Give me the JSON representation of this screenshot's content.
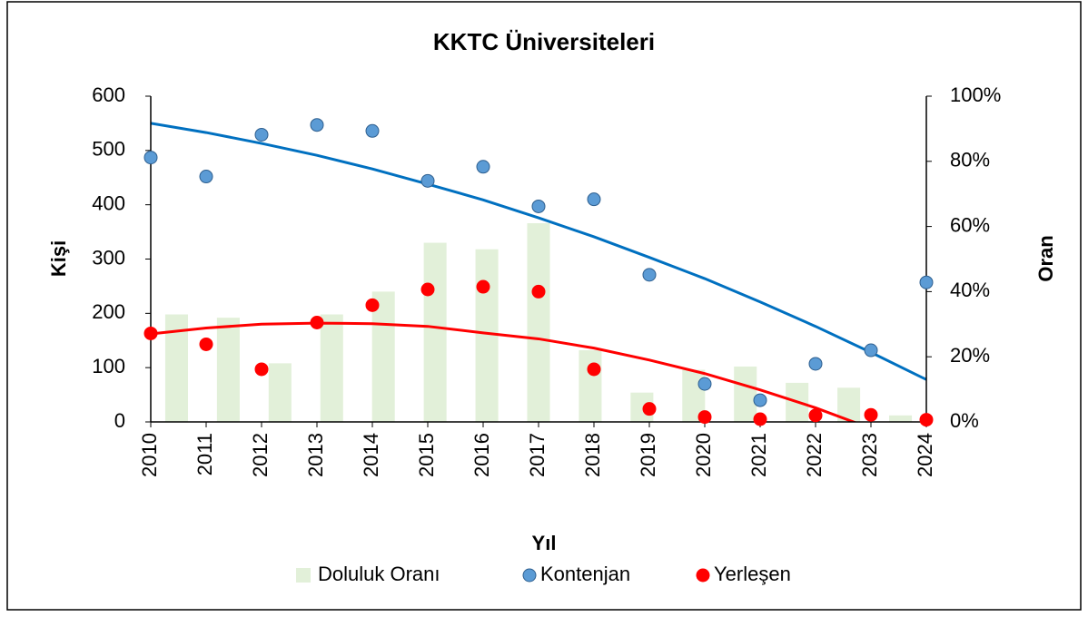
{
  "chart_data": {
    "type": "scatter",
    "title": "KKTC Üniversiteleri",
    "x_label": "Yıl",
    "y_label": "Kişi",
    "y2_label": "Oran",
    "x": [
      2010,
      2011,
      2012,
      2013,
      2014,
      2015,
      2016,
      2017,
      2018,
      2019,
      2020,
      2021,
      2022,
      2023,
      2024
    ],
    "xlim": [
      2010,
      2024
    ],
    "xticks": [
      2010,
      2011,
      2012,
      2013,
      2014,
      2015,
      2016,
      2017,
      2018,
      2019,
      2020,
      2021,
      2022,
      2023,
      2024
    ],
    "ylim": [
      0,
      600
    ],
    "yticks": [
      0,
      100,
      200,
      300,
      400,
      500,
      600
    ],
    "y2lim": [
      0,
      100
    ],
    "y2ticks": [
      {
        "value": 0,
        "label": "0%"
      },
      {
        "value": 20,
        "label": "20%"
      },
      {
        "value": 40,
        "label": "40%"
      },
      {
        "value": 60,
        "label": "60%"
      },
      {
        "value": 80,
        "label": "80%"
      },
      {
        "value": 100,
        "label": "100%"
      }
    ],
    "grid": false,
    "legend": "bottom",
    "series": [
      {
        "name": "Doluluk Oranı",
        "type": "bar",
        "axis": "y2",
        "color": "#e2f0d9",
        "values": [
          33,
          32,
          18,
          33,
          40,
          55,
          53,
          61,
          22,
          9,
          16,
          17,
          12,
          10.5,
          2
        ]
      },
      {
        "name": "Kontenjan",
        "type": "scatter",
        "color": "#5b9bd5",
        "values": [
          487,
          452,
          529,
          547,
          536,
          444,
          470,
          397,
          410,
          271,
          70,
          40,
          107,
          132,
          257
        ]
      },
      {
        "name": "Yerleşen",
        "type": "scatter",
        "color": "#ff0000",
        "values": [
          163,
          143,
          97,
          183,
          215,
          244,
          249,
          240,
          97,
          24,
          9,
          5,
          12,
          13,
          4
        ]
      }
    ],
    "trendlines": [
      {
        "color": "#0070c0",
        "values": [
          550,
          533,
          513,
          491,
          466,
          438,
          409,
          376,
          341,
          303,
          264,
          221,
          176,
          128,
          78
        ]
      },
      {
        "color": "#ff0000",
        "values": [
          162,
          173,
          180,
          182,
          181,
          176,
          164,
          153,
          136,
          114,
          89,
          59,
          26,
          -12,
          -53
        ]
      }
    ]
  }
}
